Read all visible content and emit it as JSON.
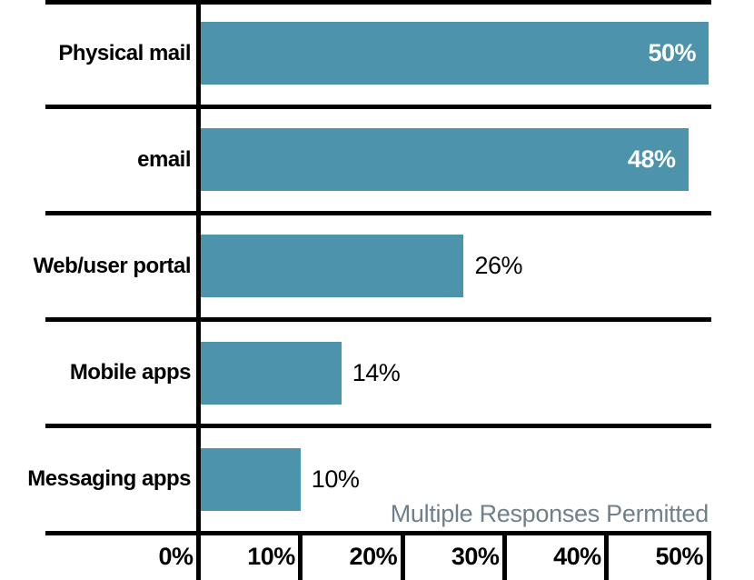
{
  "chart_data": {
    "type": "bar",
    "orientation": "horizontal",
    "title": "",
    "categories": [
      "Physical mail",
      "email",
      "Web/user portal",
      "Mobile apps",
      "Messaging apps"
    ],
    "values": [
      50,
      48,
      26,
      14,
      10
    ],
    "value_labels": [
      "50%",
      "48%",
      "26%",
      "14%",
      "10%"
    ],
    "x_tick_values": [
      0,
      10,
      20,
      30,
      40,
      50
    ],
    "x_tick_labels": [
      "0%",
      "10%",
      "20%",
      "30%",
      "40%",
      "50%"
    ],
    "xlim": [
      0,
      50
    ],
    "grid": false,
    "legend": false,
    "note": "Multiple Responses Permitted",
    "colors": {
      "bar": "#4e93ac",
      "axis_lines": "#000000",
      "inside_value_label": "#ffffff",
      "outside_value_label": "#000000",
      "category_label": "#000000",
      "x_tick_label": "#000000",
      "note_text": "#70808b",
      "background": "#ffffff"
    },
    "value_label_placement_rule": "inside bar when value >= 40, otherwise outside right of bar"
  }
}
